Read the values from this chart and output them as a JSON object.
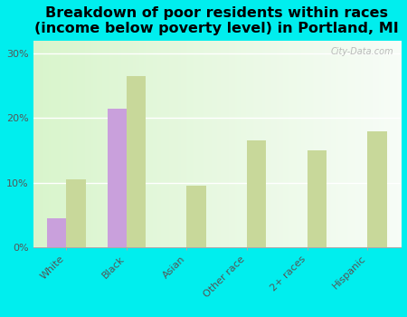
{
  "title": "Breakdown of poor residents within races\n(income below poverty level) in Portland, MI",
  "categories": [
    "White",
    "Black",
    "Asian",
    "Other race",
    "2+ races",
    "Hispanic"
  ],
  "portland_values": [
    4.5,
    21.5,
    0,
    0,
    0,
    0
  ],
  "michigan_values": [
    10.5,
    26.5,
    9.5,
    16.5,
    15.0,
    18.0
  ],
  "portland_color": "#c9a0dc",
  "michigan_color": "#c8d89a",
  "background_color": "#00eeee",
  "ylim": [
    0,
    32
  ],
  "yticks": [
    0,
    10,
    20,
    30
  ],
  "ytick_labels": [
    "0%",
    "10%",
    "20%",
    "30%"
  ],
  "bar_width": 0.32,
  "title_fontsize": 11.5,
  "tick_fontsize": 8,
  "legend_fontsize": 9,
  "watermark": "City-Data.com"
}
